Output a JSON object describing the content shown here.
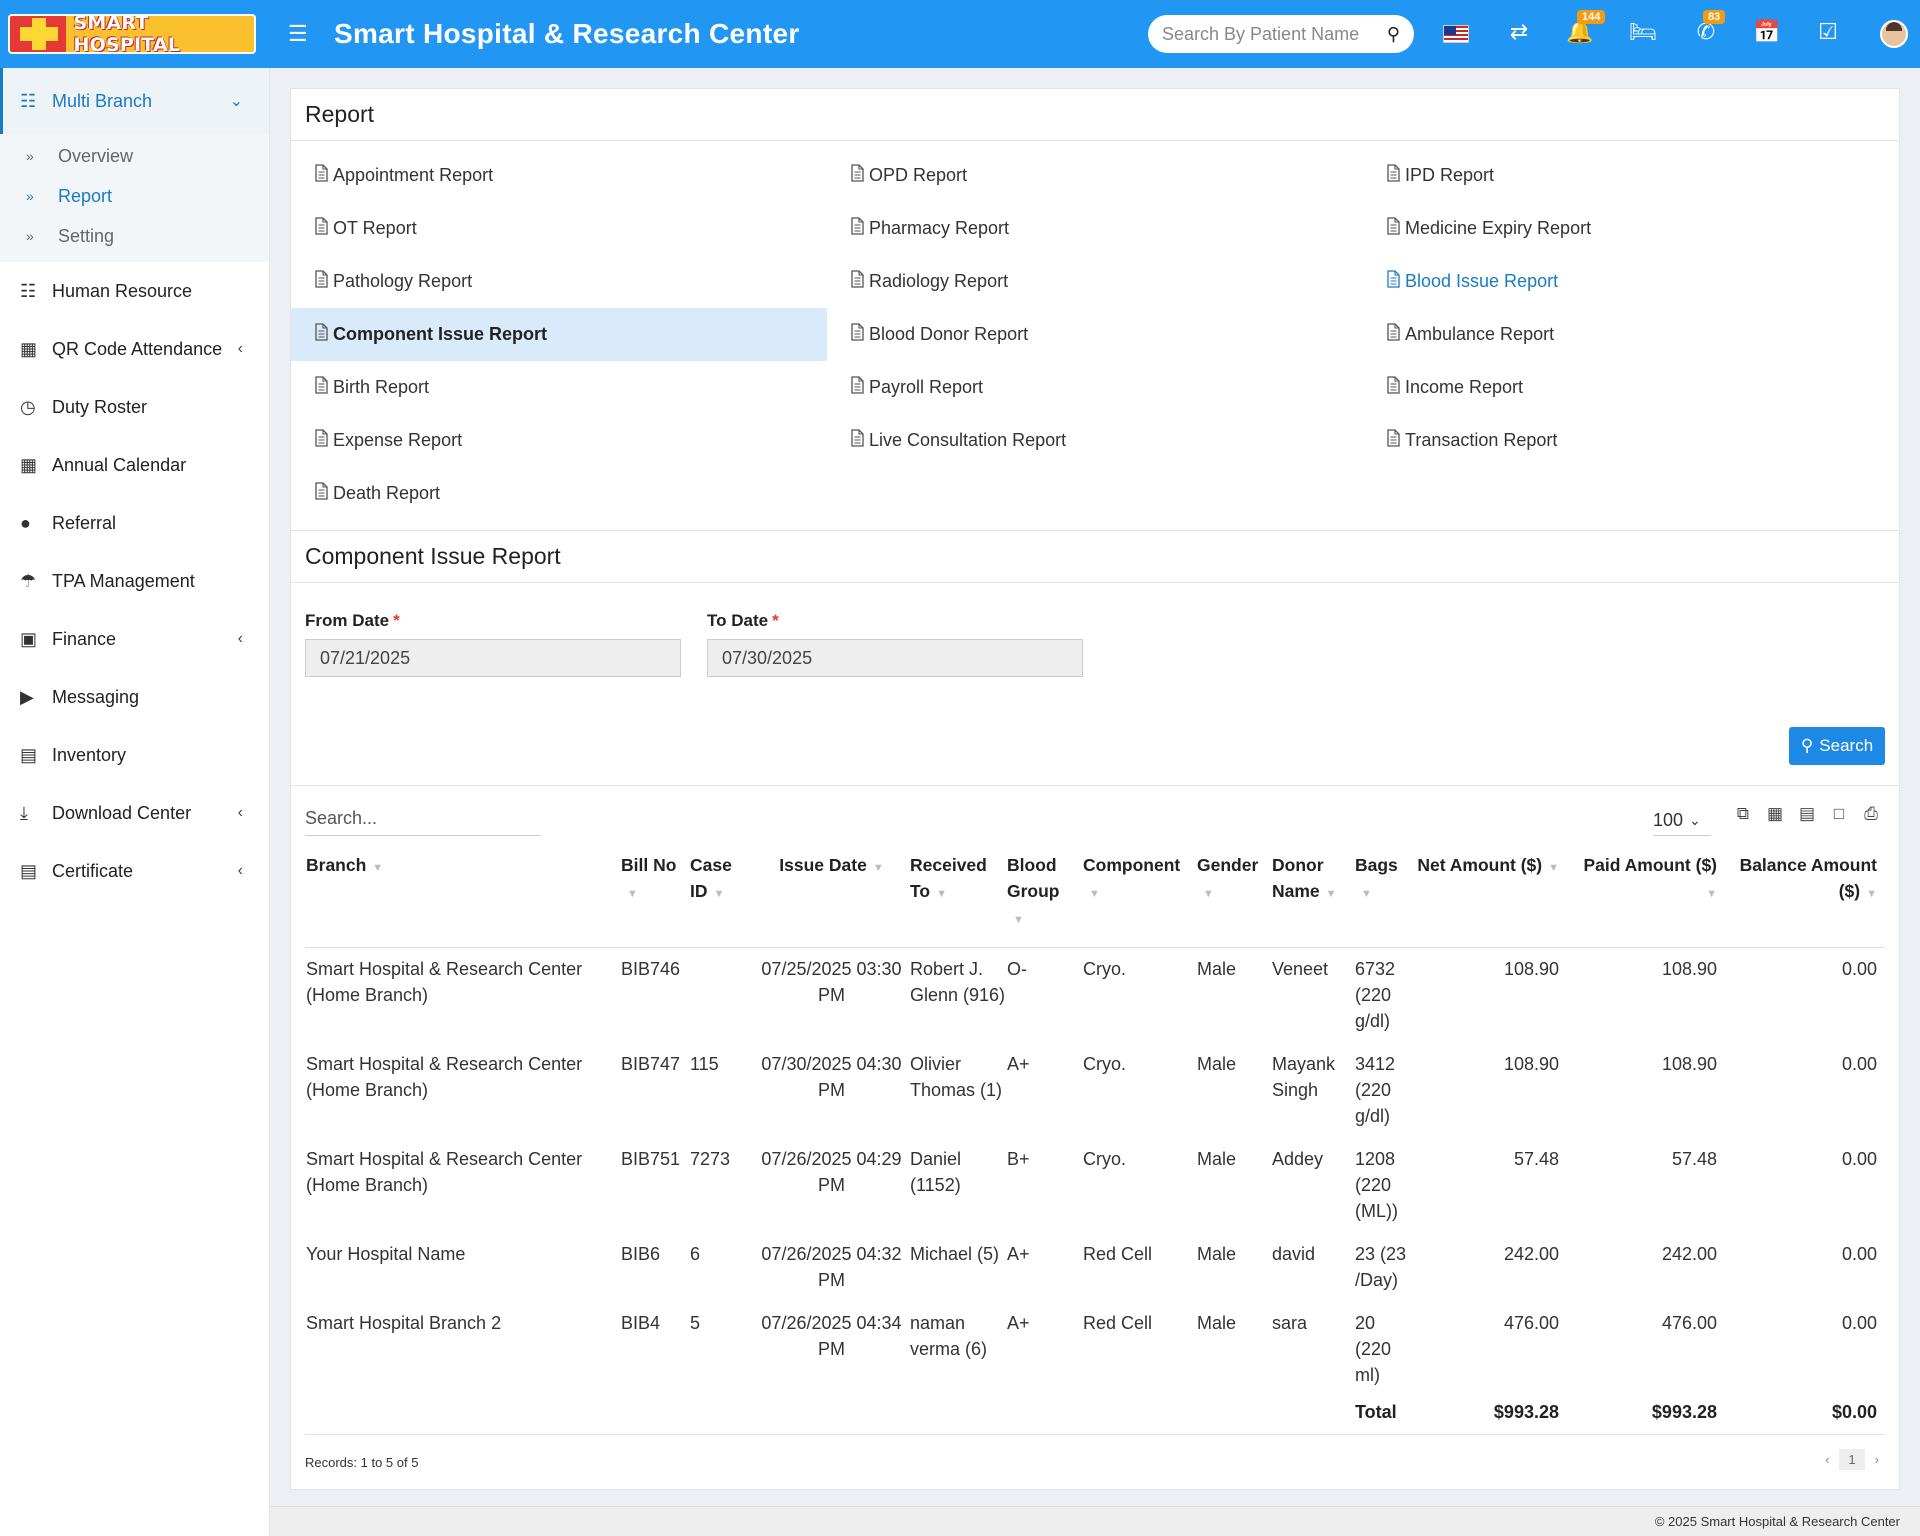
{
  "header": {
    "logo_text": "SMART HOSPITAL",
    "title": "Smart Hospital & Research Center",
    "search_placeholder": "Search By Patient Name",
    "notifications_count": "144",
    "whatsapp_count": "83",
    "brand_color": "#2196f3"
  },
  "sidebar": {
    "active": {
      "label": "Multi Branch",
      "icon": "sitemap-icon"
    },
    "submenu": [
      {
        "label": "Overview"
      },
      {
        "label": "Report"
      },
      {
        "label": "Setting"
      }
    ],
    "items": [
      {
        "label": "Human Resource",
        "icon": "sitemap-icon"
      },
      {
        "label": "QR Code Attendance",
        "icon": "qrcode-icon"
      },
      {
        "label": "Duty Roster",
        "icon": "clock-icon"
      },
      {
        "label": "Annual Calendar",
        "icon": "calculator-icon"
      },
      {
        "label": "Referral",
        "icon": "users-icon"
      },
      {
        "label": "TPA Management",
        "icon": "umbrella-icon"
      },
      {
        "label": "Finance",
        "icon": "money-icon"
      },
      {
        "label": "Messaging",
        "icon": "bullhorn-icon"
      },
      {
        "label": "Inventory",
        "icon": "cart-icon"
      },
      {
        "label": "Download Center",
        "icon": "download-icon"
      },
      {
        "label": "Certificate",
        "icon": "certificate-icon"
      }
    ]
  },
  "report_section": {
    "title": "Report",
    "links": [
      "Appointment Report",
      "OPD Report",
      "IPD Report",
      "OT Report",
      "Pharmacy Report",
      "Medicine Expiry Report",
      "Pathology Report",
      "Radiology Report",
      "Blood Issue Report",
      "Component Issue Report",
      "Blood Donor Report",
      "Ambulance Report",
      "Birth Report",
      "Payroll Report",
      "Income Report",
      "Expense Report",
      "Live Consultation Report",
      "Transaction Report",
      "Death Report"
    ]
  },
  "component_report": {
    "title": "Component Issue Report",
    "from_label": "From Date",
    "to_label": "To Date",
    "required_mark": "*",
    "from_value": "07/21/2025",
    "to_value": "07/30/2025",
    "search_button": "Search"
  },
  "table": {
    "search_placeholder": "Search...",
    "page_size": "100",
    "columns": {
      "branch": "Branch",
      "bill": "Bill No",
      "case": "Case ID",
      "issue": "Issue Date",
      "received": "Received To",
      "blood": "Blood Group",
      "component": "Component",
      "gender": "Gender",
      "donor": "Donor Name",
      "bags": "Bags",
      "net": "Net Amount ($)",
      "paid": "Paid Amount ($)",
      "balance": "Balance Amount ($)"
    },
    "rows": [
      {
        "branch": "Smart Hospital & Research Center (Home Branch)",
        "bill": "BIB746",
        "case": "",
        "issue": "07/25/2025 03:30 PM",
        "received": "Robert J. Glenn (916)",
        "blood": "O-",
        "component": "Cryo.",
        "gender": "Male",
        "donor": "Veneet",
        "bags": "6732 (220 g/dl)",
        "net": "108.90",
        "paid": "108.90",
        "balance": "0.00"
      },
      {
        "branch": "Smart Hospital & Research Center (Home Branch)",
        "bill": "BIB747",
        "case": "115",
        "issue": "07/30/2025 04:30 PM",
        "received": "Olivier Thomas (1)",
        "blood": "A+",
        "component": "Cryo.",
        "gender": "Male",
        "donor": "Mayank Singh",
        "bags": "3412 (220 g/dl)",
        "net": "108.90",
        "paid": "108.90",
        "balance": "0.00"
      },
      {
        "branch": "Smart Hospital & Research Center (Home Branch)",
        "bill": "BIB751",
        "case": "7273",
        "issue": "07/26/2025 04:29 PM",
        "received": "Daniel (1152)",
        "blood": "B+",
        "component": "Cryo.",
        "gender": "Male",
        "donor": "Addey",
        "bags": "1208 (220 (ML))",
        "net": "57.48",
        "paid": "57.48",
        "balance": "0.00"
      },
      {
        "branch": "Your Hospital Name",
        "bill": "BIB6",
        "case": "6",
        "issue": "07/26/2025 04:32 PM",
        "received": "Michael (5)",
        "blood": "A+",
        "component": "Red Cell",
        "gender": "Male",
        "donor": "david",
        "bags": "23 (23 /Day)",
        "net": "242.00",
        "paid": "242.00",
        "balance": "0.00"
      },
      {
        "branch": "Smart Hospital Branch 2",
        "bill": "BIB4",
        "case": "5",
        "issue": "07/26/2025 04:34 PM",
        "received": "naman verma (6)",
        "blood": "A+",
        "component": "Red Cell",
        "gender": "Male",
        "donor": "sara",
        "bags": "20 (220 ml)",
        "net": "476.00",
        "paid": "476.00",
        "balance": "0.00"
      }
    ],
    "total_label": "Total",
    "total_net": "$993.28",
    "total_paid": "$993.28",
    "total_balance": "$0.00",
    "records_text": "Records: 1 to 5 of 5",
    "current_page": "1"
  },
  "footer": {
    "text": "© 2025 Smart Hospital & Research Center"
  }
}
